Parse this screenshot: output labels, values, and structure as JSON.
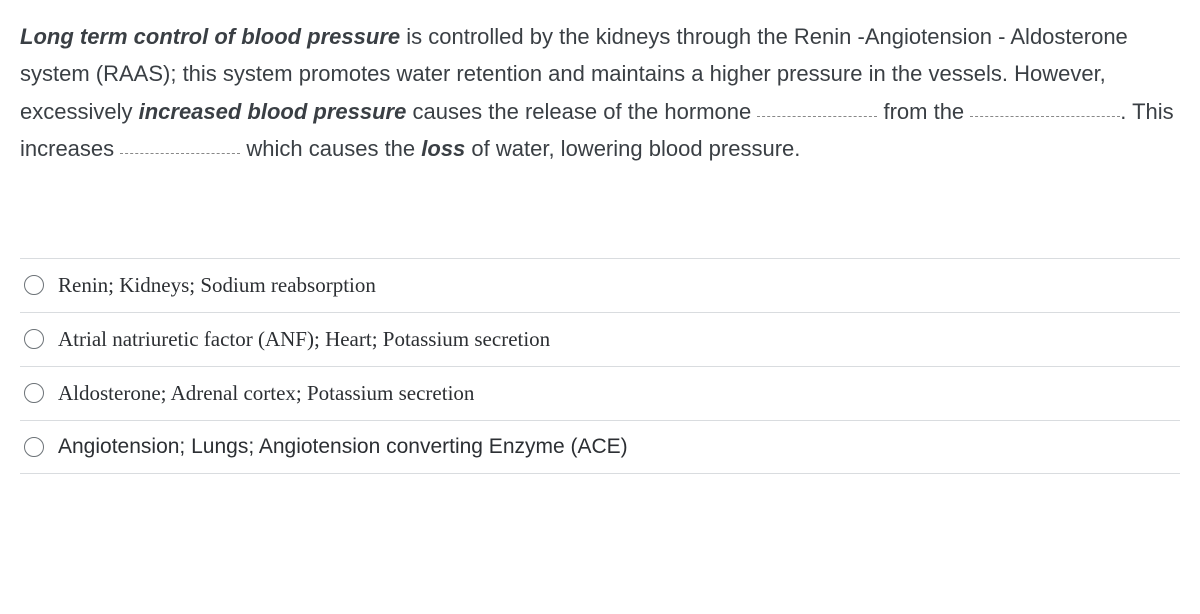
{
  "question": {
    "seg1_bi": "Long term control of blood pressure",
    "seg2": " is controlled by the kidneys through the Renin -Angiotension - Aldosterone system (RAAS); this system promotes water retention and maintains a higher pressure in the vessels.  However, excessively ",
    "seg3_bi": "increased blood pressure",
    "seg4": " causes the release of the hormone ",
    "seg5": " from the ",
    "seg6": ".  This increases ",
    "seg7": " which causes the ",
    "seg8_bi": "loss",
    "seg9": " of water, lowering blood pressure."
  },
  "options": [
    {
      "label": "Renin; Kidneys; Sodium reabsorption",
      "font": "serif"
    },
    {
      "label": "Atrial natriuretic factor (ANF); Heart; Potassium secretion",
      "font": "serif"
    },
    {
      "label": "Aldosterone; Adrenal cortex; Potassium secretion",
      "font": "serif"
    },
    {
      "label": "Angiotension; Lungs; Angiotension converting Enzyme (ACE)",
      "font": "sans"
    }
  ]
}
